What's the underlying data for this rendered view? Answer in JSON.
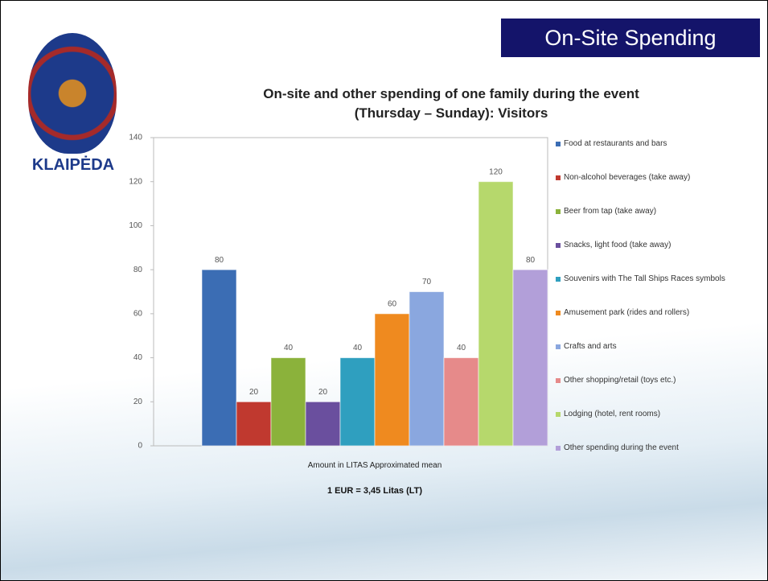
{
  "header": {
    "title": "On-Site Spending",
    "logo_text": "KLAIPĖDA"
  },
  "chart_data": {
    "type": "bar",
    "title_lines": [
      "On-site and other spending of one family during the event",
      "(Thursday – Sunday): Visitors"
    ],
    "x_label": "Amount in LITAS Approximated mean",
    "note": "1 EUR = 3,45 Litas (LT)",
    "categories": [
      "Food at restaurants and bars",
      "Non-alcohol beverages (take away)",
      "Beer from tap (take away)",
      "Snacks, light food (take away)",
      "Souvenirs with The Tall Ships Races symbols",
      "Amusement park (rides and rollers)",
      "Crafts and arts",
      "Other shopping/retail (toys etc.)",
      "Lodging (hotel, rent rooms)",
      "Other spending during the event"
    ],
    "values": [
      80,
      20,
      40,
      20,
      40,
      60,
      70,
      40,
      120,
      80
    ],
    "colors": [
      "#3b6db4",
      "#c0392f",
      "#8bb23b",
      "#6a4f9e",
      "#2f9fbf",
      "#ef8a1f",
      "#8aa7df",
      "#e68a8a",
      "#b6d86c",
      "#b29fd9"
    ],
    "ylim": [
      0,
      140
    ],
    "yticks": [
      0,
      20,
      40,
      60,
      80,
      100,
      120,
      140
    ],
    "grid": false,
    "legend": "right"
  }
}
